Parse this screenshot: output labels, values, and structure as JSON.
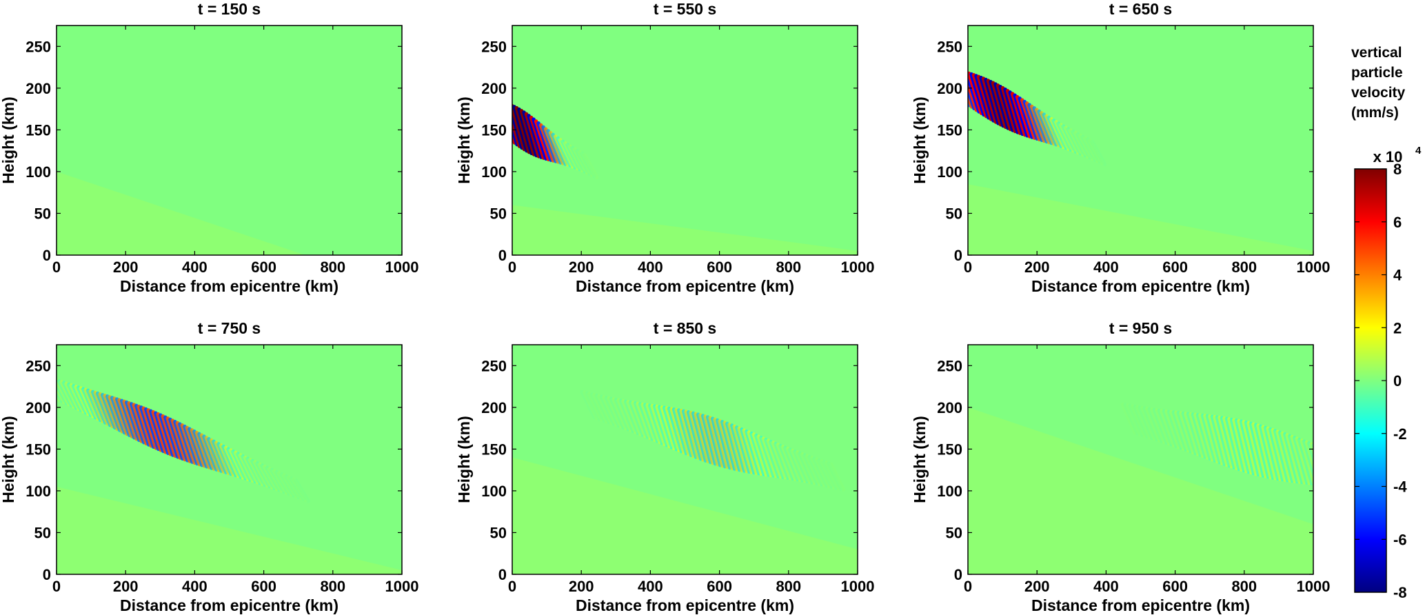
{
  "chart_data": [
    {
      "type": "heatmap",
      "title": "t = 150  s",
      "xlabel": "Distance from epicentre (km)",
      "ylabel": "Height (km)",
      "xlim": [
        0,
        1000
      ],
      "ylim": [
        0,
        275
      ],
      "xticks": [
        0,
        200,
        400,
        600,
        800,
        1000
      ],
      "yticks": [
        0,
        50,
        100,
        150,
        200,
        250
      ],
      "wave_packet": null,
      "faint_wavefront": {
        "height_at_0": 100,
        "height_at_end": 0,
        "end_distance": 720
      }
    },
    {
      "type": "heatmap",
      "title": "t = 550  s",
      "xlabel": "Distance from epicentre (km)",
      "ylabel": "Height (km)",
      "xlim": [
        0,
        1000
      ],
      "ylim": [
        0,
        275
      ],
      "xticks": [
        0,
        200,
        400,
        600,
        800,
        1000
      ],
      "yticks": [
        0,
        50,
        100,
        150,
        200,
        250
      ],
      "wave_packet": {
        "x_center": 30,
        "y_center": 150,
        "x_spread": 150,
        "y_spread": 22,
        "slope_km_per_km": -0.22,
        "peak_amplitude": 8
      },
      "faint_wavefront": {
        "height_at_0": 60,
        "height_at_end": 5,
        "end_distance": 1000
      }
    },
    {
      "type": "heatmap",
      "title": "t = 650  s",
      "xlabel": "Distance from epicentre (km)",
      "ylabel": "Height (km)",
      "xlim": [
        0,
        1000
      ],
      "ylim": [
        0,
        275
      ],
      "xticks": [
        0,
        200,
        400,
        600,
        800,
        1000
      ],
      "yticks": [
        0,
        50,
        100,
        150,
        200,
        250
      ],
      "wave_packet": {
        "x_center": 90,
        "y_center": 180,
        "x_spread": 220,
        "y_spread": 22,
        "slope_km_per_km": -0.2,
        "peak_amplitude": 7.5
      },
      "faint_wavefront": {
        "height_at_0": 85,
        "height_at_end": 5,
        "end_distance": 1000
      }
    },
    {
      "type": "heatmap",
      "title": "t = 750  s",
      "xlabel": "Distance from epicentre (km)",
      "ylabel": "Height (km)",
      "xlim": [
        0,
        1000
      ],
      "ylim": [
        0,
        275
      ],
      "xticks": [
        0,
        200,
        400,
        600,
        800,
        1000
      ],
      "yticks": [
        0,
        50,
        100,
        150,
        200,
        250
      ],
      "wave_packet": {
        "x_center": 300,
        "y_center": 170,
        "x_spread": 330,
        "y_spread": 20,
        "slope_km_per_km": -0.17,
        "peak_amplitude": 5
      },
      "faint_wavefront": {
        "height_at_0": 105,
        "height_at_end": 5,
        "end_distance": 1000
      }
    },
    {
      "type": "heatmap",
      "title": "t = 850  s",
      "xlabel": "Distance from epicentre (km)",
      "ylabel": "Height (km)",
      "xlim": [
        0,
        1000
      ],
      "ylim": [
        0,
        275
      ],
      "xticks": [
        0,
        200,
        400,
        600,
        800,
        1000
      ],
      "yticks": [
        0,
        50,
        100,
        150,
        200,
        250
      ],
      "wave_packet": {
        "x_center": 580,
        "y_center": 160,
        "x_spread": 320,
        "y_spread": 24,
        "slope_km_per_km": -0.12,
        "peak_amplitude": 2.8
      },
      "faint_wavefront": {
        "height_at_0": 140,
        "height_at_end": 30,
        "end_distance": 1000
      }
    },
    {
      "type": "heatmap",
      "title": "t = 950  s",
      "xlabel": "Distance from epicentre (km)",
      "ylabel": "Height (km)",
      "xlim": [
        0,
        1000
      ],
      "ylim": [
        0,
        275
      ],
      "xticks": [
        0,
        200,
        400,
        600,
        800,
        1000
      ],
      "yticks": [
        0,
        50,
        100,
        150,
        200,
        250
      ],
      "wave_packet": {
        "x_center": 830,
        "y_center": 150,
        "x_spread": 350,
        "y_spread": 26,
        "slope_km_per_km": -0.1,
        "peak_amplitude": 1.8
      },
      "faint_wavefront": {
        "height_at_0": 200,
        "height_at_end": 60,
        "end_distance": 1000
      }
    }
  ],
  "colorbar": {
    "title_lines": [
      "vertical",
      "particle",
      "velocity",
      "(mm/s)"
    ],
    "scale_label": "x 10",
    "scale_exponent": "4",
    "colormap": "jet",
    "range": [
      -8,
      8
    ],
    "ticks": [
      -8,
      -6,
      -4,
      -2,
      0,
      2,
      4,
      6,
      8
    ]
  }
}
